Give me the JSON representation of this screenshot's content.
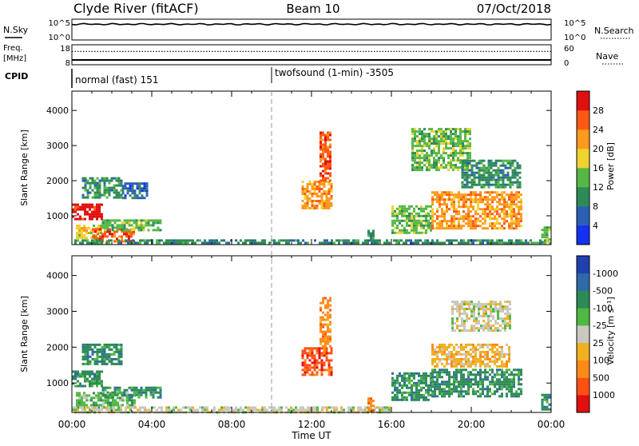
{
  "header": {
    "station": "Clyde River (fitACF)",
    "beam": "Beam 10",
    "date": "07/Oct/2018"
  },
  "status_panels": {
    "nsky": {
      "label": "N.Sky",
      "left_ticks": [
        "10^5",
        "10^0"
      ],
      "right_ticks": [
        "10^5",
        "10^0"
      ],
      "right_label": "N.Search",
      "value_log": 3.8
    },
    "freq": {
      "label_line1": "Freq.",
      "label_line2": "[MHz]",
      "left_ticks": [
        "18",
        "8"
      ],
      "right_ticks": [
        "60",
        "0"
      ],
      "right_label": "Nave",
      "freq_mhz": 10.4,
      "nave": 40
    },
    "cpid": {
      "label": "CPID",
      "modes": [
        {
          "text": "normal (fast) 151",
          "start_hour": 0
        },
        {
          "text": "twofsound (1-min) -3505",
          "start_hour": 10.0
        }
      ]
    }
  },
  "time_axis": {
    "label": "Time UT",
    "ticks": [
      "00:00",
      "04:00",
      "08:00",
      "12:00",
      "16:00",
      "20:00",
      "00:00"
    ]
  },
  "chart_data": [
    {
      "type": "heatmap",
      "name": "power",
      "xlabel": "Time UT",
      "ylabel": "Slant Range [km]",
      "xlim": [
        0,
        24
      ],
      "ylim": [
        180,
        4550
      ],
      "yticks": [
        "1000",
        "2000",
        "3000",
        "4000"
      ],
      "colorbar": {
        "label": "Power [dB]",
        "ticks": [
          "4",
          "8",
          "12",
          "16",
          "20",
          "24",
          "28"
        ],
        "colors": [
          "#1430f0",
          "#2c5fb4",
          "#2e8b57",
          "#58b846",
          "#f0d230",
          "#ff9a1e",
          "#ff5a14",
          "#e01010"
        ]
      },
      "regions": [
        {
          "t0": 0.0,
          "t1": 1.6,
          "r0": 850,
          "r1": 1350,
          "level": 7
        },
        {
          "t0": 0.2,
          "t1": 1.5,
          "r0": 350,
          "r1": 750,
          "level": 4
        },
        {
          "t0": 1.0,
          "t1": 3.2,
          "r0": 250,
          "r1": 650,
          "level": 6
        },
        {
          "t0": 1.5,
          "t1": 4.5,
          "r0": 550,
          "r1": 900,
          "level": 3
        },
        {
          "t0": 0.5,
          "t1": 2.5,
          "r0": 1500,
          "r1": 2100,
          "level": 2
        },
        {
          "t0": 2.5,
          "t1": 3.8,
          "r0": 1500,
          "r1": 1950,
          "level": 1
        },
        {
          "t0": 0.0,
          "t1": 24.0,
          "r0": 180,
          "r1": 330,
          "level": 2
        },
        {
          "t0": 11.5,
          "t1": 13.0,
          "r0": 1200,
          "r1": 2000,
          "level": 5
        },
        {
          "t0": 12.4,
          "t1": 13.0,
          "r0": 2000,
          "r1": 3400,
          "level": 6
        },
        {
          "t0": 16.0,
          "t1": 18.0,
          "r0": 500,
          "r1": 1300,
          "level": 3
        },
        {
          "t0": 18.0,
          "t1": 22.5,
          "r0": 600,
          "r1": 1700,
          "level": 5
        },
        {
          "t0": 17.0,
          "t1": 20.0,
          "r0": 2300,
          "r1": 3500,
          "level": 3
        },
        {
          "t0": 19.5,
          "t1": 22.5,
          "r0": 1800,
          "r1": 2600,
          "level": 2
        },
        {
          "t0": 14.8,
          "t1": 15.2,
          "r0": 180,
          "r1": 600,
          "level": 2
        },
        {
          "t0": 23.5,
          "t1": 24.0,
          "r0": 200,
          "r1": 700,
          "level": 3
        }
      ]
    },
    {
      "type": "heatmap",
      "name": "velocity",
      "xlabel": "Time UT",
      "ylabel": "Slant Range [km]",
      "xlim": [
        0,
        24
      ],
      "ylim": [
        180,
        4550
      ],
      "yticks": [
        "1000",
        "2000",
        "3000",
        "4000"
      ],
      "colorbar": {
        "label": "Velocity [m s⁻¹]",
        "ticks": [
          "1000",
          "500",
          "100",
          "25",
          "-25",
          "-100",
          "-500",
          "-1000"
        ],
        "colors": [
          "#2040b0",
          "#2e6aa8",
          "#2e8b57",
          "#50b843",
          "#c8c8c0",
          "#f0b020",
          "#ff8a18",
          "#ff5014",
          "#e01010"
        ]
      },
      "regions": [
        {
          "t0": 0.0,
          "t1": 1.6,
          "r0": 850,
          "r1": 1350,
          "level": 2
        },
        {
          "t0": 0.2,
          "t1": 3.2,
          "r0": 250,
          "r1": 750,
          "level": 3
        },
        {
          "t0": 1.5,
          "t1": 4.5,
          "r0": 550,
          "r1": 900,
          "level": 2
        },
        {
          "t0": 0.5,
          "t1": 2.5,
          "r0": 1500,
          "r1": 2100,
          "level": 2
        },
        {
          "t0": 0.0,
          "t1": 16.0,
          "r0": 180,
          "r1": 350,
          "level": 4
        },
        {
          "t0": 11.5,
          "t1": 13.0,
          "r0": 1200,
          "r1": 2000,
          "level": 7
        },
        {
          "t0": 12.4,
          "t1": 13.0,
          "r0": 2000,
          "r1": 3400,
          "level": 6
        },
        {
          "t0": 16.0,
          "t1": 18.0,
          "r0": 500,
          "r1": 1300,
          "level": 2
        },
        {
          "t0": 18.0,
          "t1": 22.5,
          "r0": 600,
          "r1": 1400,
          "level": 2
        },
        {
          "t0": 18.0,
          "t1": 22.0,
          "r0": 1400,
          "r1": 2100,
          "level": 5
        },
        {
          "t0": 19.0,
          "t1": 22.0,
          "r0": 2400,
          "r1": 3300,
          "level": 4
        },
        {
          "t0": 14.8,
          "t1": 15.2,
          "r0": 180,
          "r1": 600,
          "level": 6
        },
        {
          "t0": 23.5,
          "t1": 24.0,
          "r0": 200,
          "r1": 700,
          "level": 2
        }
      ]
    }
  ]
}
